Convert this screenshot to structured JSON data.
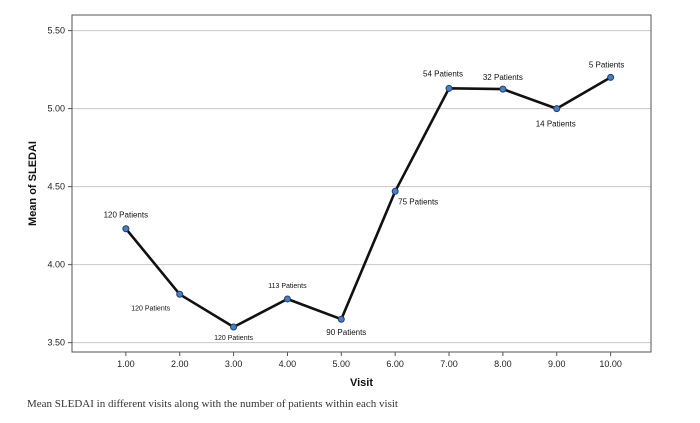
{
  "chart_data": {
    "type": "line",
    "x": [
      1.0,
      2.0,
      3.0,
      4.0,
      5.0,
      6.0,
      7.0,
      8.0,
      9.0,
      10.0
    ],
    "x_tick_labels": [
      "1.00",
      "2.00",
      "3.00",
      "4.00",
      "5.00",
      "6.00",
      "7.00",
      "8.00",
      "9.00",
      "10.00"
    ],
    "series": [
      {
        "values": [
          4.23,
          3.81,
          3.6,
          3.78,
          3.65,
          4.47,
          5.13,
          5.125,
          5.0,
          5.2
        ]
      }
    ],
    "point_labels": [
      "120 Patients",
      "120 Patients",
      "120 Patients",
      "113 Patients",
      "90 Patients",
      "75 Patients",
      "54 Patients",
      "32 Patients",
      "14 Patients",
      "5 Patients"
    ],
    "xlabel": "Visit",
    "ylabel": "Mean of SLEDAI",
    "ylim": [
      3.44,
      5.6
    ],
    "y_ticks": [
      3.5,
      4.0,
      4.5,
      5.0,
      5.5
    ],
    "y_tick_labels": [
      "3.50",
      "4.00",
      "4.50",
      "5.00",
      "5.50"
    ],
    "grid": "horizontal",
    "line_color": "#111111",
    "marker_color": "#4a7fc1",
    "grid_color": "#c8c8c8"
  },
  "caption": "Mean SLEDAI in different visits along with the number of patients within each visit"
}
